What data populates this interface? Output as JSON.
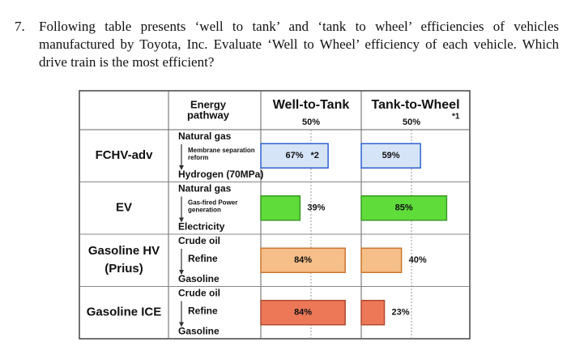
{
  "question": {
    "number": "7.",
    "text": "Following table presents ‘well to tank’ and ‘tank to wheel’ efficiencies of vehicles manufactured by Toyota, Inc. Evaluate ‘Well to Wheel’ efficiency of each vehicle. Which drive train is the most efficient?"
  },
  "table": {
    "headers": {
      "pathway": [
        "Energy",
        "pathway"
      ],
      "wtt": "Well-to-Tank",
      "wtt_ref": {
        "value": 50,
        "label": "50%"
      },
      "ttw": "Tank-to-Wheel",
      "ttw_ref": {
        "value": 50,
        "label": "50%"
      },
      "ttw_note": "*1"
    },
    "rows": [
      {
        "name": [
          "FCHV-adv"
        ],
        "pathway": {
          "from": "Natural gas",
          "process": [
            "Membrane separation",
            "reform"
          ],
          "to": "Hydrogen (70MPa)"
        },
        "color": "#d6e4f7",
        "stroke": "#2f62d0",
        "wtt": 67,
        "wtt_label": "67%",
        "wtt_note": "*2",
        "ttw": 59,
        "ttw_label": "59%"
      },
      {
        "name": [
          "EV"
        ],
        "pathway": {
          "from": "Natural gas",
          "process": [
            "Gas-fired Power",
            "generation"
          ],
          "to": "Electricity"
        },
        "color": "#5fdc3a",
        "stroke": "#3a9a22",
        "wtt": 39,
        "wtt_label": "39%",
        "ttw": 85,
        "ttw_label": "85%"
      },
      {
        "name": [
          "Gasoline HV",
          "(Prius)"
        ],
        "pathway": {
          "from": "Crude oil",
          "process": [
            "Refine"
          ],
          "to": "Gasoline"
        },
        "color": "#f6be88",
        "stroke": "#c9772f",
        "wtt": 84,
        "wtt_label": "84%",
        "ttw": 40,
        "ttw_label": "40%"
      },
      {
        "name": [
          "Gasoline ICE"
        ],
        "pathway": {
          "from": "Crude oil",
          "process": [
            "Refine"
          ],
          "to": "Gasoline"
        },
        "color": "#ec7858",
        "stroke": "#b04a30",
        "wtt": 84,
        "wtt_label": "84%",
        "ttw": 23,
        "ttw_label": "23%"
      }
    ]
  }
}
